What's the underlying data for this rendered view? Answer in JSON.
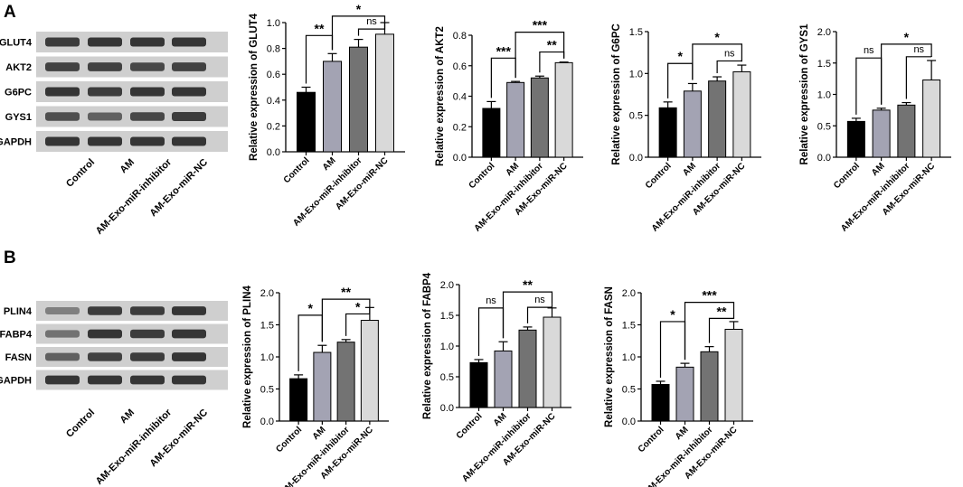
{
  "panels": [
    {
      "id": "A",
      "label": "A"
    },
    {
      "id": "B",
      "label": "B"
    }
  ],
  "colors": {
    "bars": [
      "#000000",
      "#a3a3b3",
      "#737373",
      "#d9d9d9"
    ],
    "axis": "#000000",
    "blot_bg": "#cfcfcf",
    "band": "#202020"
  },
  "blots": [
    {
      "panel": "A",
      "rows": [
        {
          "label": "GLUT4",
          "intensity": [
            0.85,
            0.9,
            0.9,
            0.9
          ]
        },
        {
          "label": "AKT2",
          "intensity": [
            0.8,
            0.8,
            0.75,
            0.8
          ]
        },
        {
          "label": "G6PC",
          "intensity": [
            0.9,
            0.85,
            0.9,
            0.9
          ]
        },
        {
          "label": "GYS1",
          "intensity": [
            0.7,
            0.55,
            0.75,
            0.85
          ]
        },
        {
          "label": "GAPDH",
          "intensity": [
            0.9,
            0.9,
            0.9,
            0.9
          ]
        }
      ],
      "lanes": [
        "Control",
        "AM",
        "AM-Exo-miR-inhibitor",
        "AM-Exo-miR-NC"
      ]
    },
    {
      "panel": "B",
      "rows": [
        {
          "label": "PLIN4",
          "intensity": [
            0.3,
            0.85,
            0.85,
            0.9
          ]
        },
        {
          "label": "FABP4",
          "intensity": [
            0.4,
            0.9,
            0.85,
            0.9
          ]
        },
        {
          "label": "FASN",
          "intensity": [
            0.55,
            0.8,
            0.85,
            0.9
          ]
        },
        {
          "label": "GAPDH",
          "intensity": [
            0.9,
            0.9,
            0.9,
            0.9
          ]
        }
      ],
      "lanes": [
        "Control",
        "AM",
        "AM-Exo-miR-inhibitor",
        "AM-Exo-miR-NC"
      ]
    }
  ],
  "chart_data": [
    {
      "id": "glut4",
      "type": "bar",
      "panel": "A",
      "ylabel": "Relative expression of GLUT4",
      "categories": [
        "Control",
        "AM",
        "AM-Exo-miR-inhibitor",
        "AM-Exo-miR-NC"
      ],
      "values": [
        0.46,
        0.7,
        0.81,
        0.91
      ],
      "errors": [
        0.04,
        0.06,
        0.06,
        0.09
      ],
      "ylim": [
        0.0,
        1.0
      ],
      "yticks": [
        "0.0",
        "0.2",
        "0.4",
        "0.6",
        "0.8",
        "1.0"
      ],
      "annotations": [
        {
          "from": 0,
          "to": 1,
          "label": "**",
          "level": 0.9
        },
        {
          "from": 2,
          "to": 3,
          "label": "ns",
          "level": 0.95
        },
        {
          "from": 1,
          "to": 3,
          "label": "*",
          "level": 1.05
        }
      ]
    },
    {
      "id": "akt2",
      "type": "bar",
      "panel": "A",
      "ylabel": "Relative expression of AKT2",
      "categories": [
        "Control",
        "AM",
        "AM-Exo-miR-inhibitor",
        "AM-Exo-miR-NC"
      ],
      "values": [
        0.32,
        0.49,
        0.52,
        0.62
      ],
      "errors": [
        0.045,
        0.007,
        0.012,
        0.004
      ],
      "ylim": [
        0.0,
        0.8
      ],
      "yticks": [
        "0.0",
        "0.2",
        "0.4",
        "0.6",
        "0.8"
      ],
      "annotations": [
        {
          "from": 0,
          "to": 1,
          "label": "***",
          "level": 0.65
        },
        {
          "from": 2,
          "to": 3,
          "label": "**",
          "level": 0.69
        },
        {
          "from": 1,
          "to": 3,
          "label": "***",
          "level": 0.82
        }
      ]
    },
    {
      "id": "g6pc",
      "type": "bar",
      "panel": "A",
      "ylabel": "Relative expression of G6PC",
      "categories": [
        "Control",
        "AM",
        "AM-Exo-miR-inhibitor",
        "AM-Exo-miR-NC"
      ],
      "values": [
        0.59,
        0.79,
        0.91,
        1.02
      ],
      "errors": [
        0.07,
        0.09,
        0.05,
        0.08
      ],
      "ylim": [
        0.0,
        1.5
      ],
      "yticks": [
        "0.0",
        "0.5",
        "1.0",
        "1.5"
      ],
      "annotations": [
        {
          "from": 0,
          "to": 1,
          "label": "*",
          "level": 1.12
        },
        {
          "from": 2,
          "to": 3,
          "label": "ns",
          "level": 1.15
        },
        {
          "from": 1,
          "to": 3,
          "label": "*",
          "level": 1.35
        }
      ]
    },
    {
      "id": "gys1",
      "type": "bar",
      "panel": "A",
      "ylabel": "Relative expression of GYS1",
      "categories": [
        "Control",
        "AM",
        "AM-Exo-miR-inhibitor",
        "AM-Exo-miR-NC"
      ],
      "values": [
        0.57,
        0.75,
        0.83,
        1.23
      ],
      "errors": [
        0.05,
        0.03,
        0.04,
        0.31
      ],
      "ylim": [
        0.0,
        2.0
      ],
      "yticks": [
        "0.0",
        "0.5",
        "1.0",
        "1.5",
        "2.0"
      ],
      "annotations": [
        {
          "from": 0,
          "to": 1,
          "label": "ns",
          "level": 1.58
        },
        {
          "from": 2,
          "to": 3,
          "label": "ns",
          "level": 1.6
        },
        {
          "from": 1,
          "to": 3,
          "label": "*",
          "level": 1.8
        }
      ]
    },
    {
      "id": "plin4",
      "type": "bar",
      "panel": "B",
      "ylabel": "Relative expression of PLIN4",
      "categories": [
        "Control",
        "AM",
        "AM-Exo-miR-inhibitor",
        "AM-Exo-miR-NC"
      ],
      "values": [
        0.66,
        1.07,
        1.23,
        1.57
      ],
      "errors": [
        0.06,
        0.11,
        0.04,
        0.2
      ],
      "ylim": [
        0.0,
        2.0
      ],
      "yticks": [
        "0.0",
        "0.5",
        "1.0",
        "1.5",
        "2.0"
      ],
      "annotations": [
        {
          "from": 0,
          "to": 1,
          "label": "*",
          "level": 1.65
        },
        {
          "from": 2,
          "to": 3,
          "label": "*",
          "level": 1.67
        },
        {
          "from": 1,
          "to": 3,
          "label": "**",
          "level": 1.9
        }
      ]
    },
    {
      "id": "fabp4",
      "type": "bar",
      "panel": "B",
      "ylabel": "Relative expression of FABP4",
      "categories": [
        "Control",
        "AM",
        "AM-Exo-miR-inhibitor",
        "AM-Exo-miR-NC"
      ],
      "values": [
        0.73,
        0.92,
        1.26,
        1.47
      ],
      "errors": [
        0.05,
        0.15,
        0.05,
        0.15
      ],
      "ylim": [
        0.0,
        2.0
      ],
      "yticks": [
        "0.0",
        "0.5",
        "1.0",
        "1.5",
        "2.0"
      ],
      "annotations": [
        {
          "from": 0,
          "to": 1,
          "label": "ns",
          "level": 1.62
        },
        {
          "from": 2,
          "to": 3,
          "label": "ns",
          "level": 1.63
        },
        {
          "from": 1,
          "to": 3,
          "label": "**",
          "level": 1.88
        }
      ]
    },
    {
      "id": "fasn",
      "type": "bar",
      "panel": "B",
      "ylabel": "Relative expression of FASN",
      "categories": [
        "Control",
        "AM",
        "AM-Exo-miR-inhibitor",
        "AM-Exo-miR-NC"
      ],
      "values": [
        0.57,
        0.84,
        1.08,
        1.43
      ],
      "errors": [
        0.05,
        0.06,
        0.08,
        0.12
      ],
      "ylim": [
        0.0,
        2.0
      ],
      "yticks": [
        "0.0",
        "0.5",
        "1.0",
        "1.5",
        "2.0"
      ],
      "annotations": [
        {
          "from": 0,
          "to": 1,
          "label": "*",
          "level": 1.55
        },
        {
          "from": 2,
          "to": 3,
          "label": "**",
          "level": 1.6
        },
        {
          "from": 1,
          "to": 3,
          "label": "***",
          "level": 1.85
        }
      ]
    }
  ]
}
